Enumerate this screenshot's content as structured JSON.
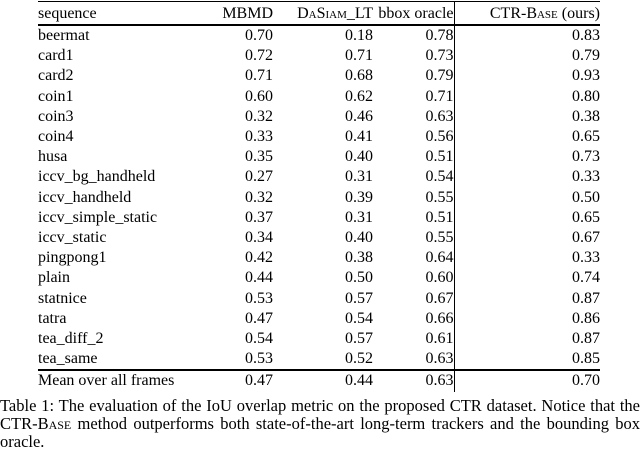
{
  "colors": {
    "background": "#ffffff",
    "text": "#000000",
    "rule": "#000000"
  },
  "table": {
    "header": {
      "sequence": "sequence",
      "mbmd": "MBMD",
      "dasiam": "DaSiam_LT",
      "bbox_oracle": "bbox oracle",
      "ctr_name": "CTR-Base",
      "ctr_suffix": "(ours)"
    },
    "column_names": [
      "sequence",
      "MBMD",
      "DaSiam_LT",
      "bbox oracle",
      "CTR-Base (ours)"
    ],
    "rows": [
      {
        "sequence": "beermat",
        "values": [
          "0.70",
          "0.18",
          "0.78",
          "0.83"
        ],
        "bold": 3
      },
      {
        "sequence": "card1",
        "values": [
          "0.72",
          "0.71",
          "0.73",
          "0.79"
        ],
        "bold": 3
      },
      {
        "sequence": "card2",
        "values": [
          "0.71",
          "0.68",
          "0.79",
          "0.93"
        ],
        "bold": 3
      },
      {
        "sequence": "coin1",
        "values": [
          "0.60",
          "0.62",
          "0.71",
          "0.80"
        ],
        "bold": 3
      },
      {
        "sequence": "coin3",
        "values": [
          "0.32",
          "0.46",
          "0.63",
          "0.38"
        ],
        "bold": 1
      },
      {
        "sequence": "coin4",
        "values": [
          "0.33",
          "0.41",
          "0.56",
          "0.65"
        ],
        "bold": 3
      },
      {
        "sequence": "husa",
        "values": [
          "0.35",
          "0.40",
          "0.51",
          "0.73"
        ],
        "bold": 3
      },
      {
        "sequence": "iccv_bg_handheld",
        "values": [
          "0.27",
          "0.31",
          "0.54",
          "0.33"
        ],
        "bold": 3
      },
      {
        "sequence": "iccv_handheld",
        "values": [
          "0.32",
          "0.39",
          "0.55",
          "0.50"
        ],
        "bold": 3
      },
      {
        "sequence": "iccv_simple_static",
        "values": [
          "0.37",
          "0.31",
          "0.51",
          "0.65"
        ],
        "bold": 3
      },
      {
        "sequence": "iccv_static",
        "values": [
          "0.34",
          "0.40",
          "0.55",
          "0.67"
        ],
        "bold": 3
      },
      {
        "sequence": "pingpong1",
        "values": [
          "0.42",
          "0.38",
          "0.64",
          "0.33"
        ],
        "bold": 0
      },
      {
        "sequence": "plain",
        "values": [
          "0.44",
          "0.50",
          "0.60",
          "0.74"
        ],
        "bold": 3
      },
      {
        "sequence": "statnice",
        "values": [
          "0.53",
          "0.57",
          "0.67",
          "0.87"
        ],
        "bold": 3
      },
      {
        "sequence": "tatra",
        "values": [
          "0.47",
          "0.54",
          "0.66",
          "0.86"
        ],
        "bold": 3
      },
      {
        "sequence": "tea_diff_2",
        "values": [
          "0.54",
          "0.57",
          "0.61",
          "0.87"
        ],
        "bold": 3
      },
      {
        "sequence": "tea_same",
        "values": [
          "0.53",
          "0.52",
          "0.63",
          "0.85"
        ],
        "bold": 3
      }
    ],
    "mean_row": {
      "sequence": "Mean over all frames",
      "values": [
        "0.47",
        "0.44",
        "0.63",
        "0.70"
      ],
      "bold": 3
    }
  },
  "caption": {
    "part1": "Table 1: The evaluation of the IoU overlap metric on the proposed CTR dataset. Notice that the ",
    "smallcaps": "CTR-Base",
    "part2": " method outperforms both state-of-the-art long-term trackers and the bounding box oracle."
  }
}
